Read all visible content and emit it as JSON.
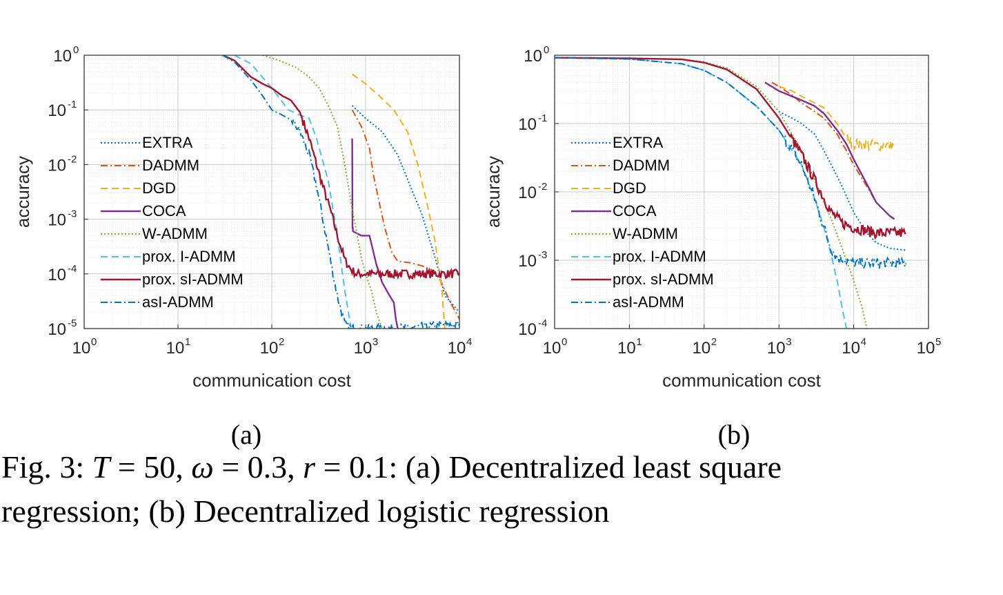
{
  "caption": {
    "line1": [
      "Fig. 3: ",
      "T",
      " = 50, ",
      "ω",
      " = 0.3, ",
      "r",
      " = 0.1: (a) Decentralized least square"
    ],
    "line2": "regression; (b) Decentralized logistic regression"
  },
  "chart_data": [
    {
      "panel": "(a)",
      "type": "line",
      "xlabel": "communication cost",
      "ylabel": "accuracy",
      "xscale": "log",
      "yscale": "log",
      "xlim": [
        1,
        10000
      ],
      "ylim": [
        1e-05,
        1
      ],
      "xticks": [
        {
          "base": "10",
          "exp": "0"
        },
        {
          "base": "10",
          "exp": "1"
        },
        {
          "base": "10",
          "exp": "2"
        },
        {
          "base": "10",
          "exp": "3"
        },
        {
          "base": "10",
          "exp": "4"
        }
      ],
      "yticks": [
        {
          "base": "10",
          "exp": "0"
        },
        {
          "base": "10",
          "exp": "-1"
        },
        {
          "base": "10",
          "exp": "-2"
        },
        {
          "base": "10",
          "exp": "-3"
        },
        {
          "base": "10",
          "exp": "-4"
        },
        {
          "base": "10",
          "exp": "-5"
        }
      ],
      "grid": true,
      "legend_position": "center-left",
      "series": [
        {
          "name": "EXTRA",
          "color": "#0072BD",
          "dash": "dotted",
          "noisy": false,
          "x": [
            720,
            1000,
            1500,
            2200,
            3000,
            4000,
            5500,
            7000,
            10000
          ],
          "y": [
            0.12,
            0.07,
            0.04,
            0.015,
            0.004,
            0.0012,
            0.0002,
            4e-05,
            2e-05
          ]
        },
        {
          "name": "DADMM",
          "color": "#D95319",
          "dash": "dashdot",
          "noisy": false,
          "x": [
            720,
            900,
            1100,
            1200,
            1400,
            1600,
            1900,
            2200,
            3000,
            4000,
            5000,
            6000,
            7000,
            8000,
            10000
          ],
          "y": [
            0.1,
            0.05,
            0.02,
            0.007,
            0.002,
            0.0007,
            0.00025,
            0.00017,
            0.00016,
            0.00014,
            0.00012,
            9e-05,
            5e-05,
            3e-05,
            1.5e-05
          ]
        },
        {
          "name": "DGD",
          "color": "#EDB120",
          "dash": "dashed",
          "noisy": false,
          "x": [
            720,
            1000,
            1400,
            2000,
            2800,
            3600,
            4500,
            5500,
            6500,
            7000
          ],
          "y": [
            0.45,
            0.3,
            0.18,
            0.1,
            0.04,
            0.01,
            0.002,
            0.0004,
            5e-05,
            1e-05
          ]
        },
        {
          "name": "COCA",
          "color": "#7E2F8E",
          "dash": "solid",
          "noisy": false,
          "x": [
            720,
            725,
            730,
            735,
            900,
            1100,
            1300,
            1500,
            1800,
            2000,
            2100,
            2200
          ],
          "y": [
            0.03,
            0.0007,
            0.0007,
            0.0006,
            0.0005,
            0.0005,
            0.00015,
            7e-05,
            4e-05,
            3e-05,
            1.5e-05,
            1e-05
          ]
        },
        {
          "name": "W-ADMM",
          "color": "#77AC30",
          "dash": "dotted",
          "noisy": false,
          "x": [
            80,
            120,
            180,
            250,
            320,
            400,
            500,
            600,
            700,
            800,
            900,
            1000,
            1150,
            1300,
            1500
          ],
          "y": [
            1,
            0.8,
            0.6,
            0.4,
            0.25,
            0.12,
            0.05,
            0.01,
            0.002,
            0.0006,
            0.0002,
            0.0001,
            5e-05,
            2e-05,
            1e-05
          ]
        },
        {
          "name": "prox. I-ADMM",
          "color": "#4DBEEE",
          "dash": "dashed",
          "noisy": false,
          "x": [
            40,
            60,
            100,
            150,
            200,
            250,
            300,
            400,
            500,
            600,
            700
          ],
          "y": [
            1,
            0.7,
            0.25,
            0.1,
            0.08,
            0.07,
            0.03,
            0.005,
            0.0005,
            5e-05,
            1e-05
          ]
        },
        {
          "name": "prox. sI-ADMM",
          "color": "#A2142F",
          "dash": "solid",
          "noisy": true,
          "x": [
            30,
            40,
            60,
            80,
            100,
            130,
            160,
            200,
            250,
            300,
            350,
            420,
            500,
            600,
            700,
            800,
            1000,
            2000,
            5000,
            10000
          ],
          "y": [
            1,
            0.8,
            0.4,
            0.3,
            0.25,
            0.18,
            0.15,
            0.09,
            0.03,
            0.01,
            0.004,
            0.0015,
            0.0005,
            0.00018,
            0.00012,
            0.0001,
            0.0001,
            0.0001,
            0.0001,
            0.0001
          ]
        },
        {
          "name": "asI-ADMM",
          "color": "#0072BD",
          "dash": "dashdot",
          "noisy": true,
          "x": [
            30,
            40,
            60,
            80,
            100,
            130,
            150,
            170,
            200,
            250,
            300,
            350,
            400,
            460,
            520,
            600,
            700,
            1000,
            2000,
            5000,
            10000
          ],
          "y": [
            1,
            0.75,
            0.35,
            0.18,
            0.1,
            0.08,
            0.07,
            0.06,
            0.04,
            0.015,
            0.004,
            0.001,
            0.0003,
            8e-05,
            3e-05,
            1.2e-05,
            1e-05,
            1e-05,
            1e-05,
            1.1e-05,
            1.2e-05
          ]
        }
      ]
    },
    {
      "panel": "(b)",
      "type": "line",
      "xlabel": "communication cost",
      "ylabel": "accuracy",
      "xscale": "log",
      "yscale": "log",
      "xlim": [
        1,
        100000
      ],
      "ylim": [
        0.0001,
        1
      ],
      "xticks": [
        {
          "base": "10",
          "exp": "0"
        },
        {
          "base": "10",
          "exp": "1"
        },
        {
          "base": "10",
          "exp": "2"
        },
        {
          "base": "10",
          "exp": "3"
        },
        {
          "base": "10",
          "exp": "4"
        },
        {
          "base": "10",
          "exp": "5"
        }
      ],
      "yticks": [
        {
          "base": "10",
          "exp": "0"
        },
        {
          "base": "10",
          "exp": "-1"
        },
        {
          "base": "10",
          "exp": "-2"
        },
        {
          "base": "10",
          "exp": "-3"
        },
        {
          "base": "10",
          "exp": "-4"
        }
      ],
      "grid": true,
      "legend_position": "center-left",
      "series": [
        {
          "name": "EXTRA",
          "color": "#0072BD",
          "dash": "dotted",
          "noisy": false,
          "x": [
            1000,
            1500,
            2000,
            3000,
            4000,
            5000,
            7000,
            10000,
            15000,
            20000,
            30000,
            50000
          ],
          "y": [
            0.15,
            0.12,
            0.1,
            0.07,
            0.04,
            0.025,
            0.012,
            0.005,
            0.0025,
            0.0018,
            0.0015,
            0.0014
          ]
        },
        {
          "name": "DADMM",
          "color": "#D95319",
          "dash": "dashdot",
          "noisy": false,
          "x": [
            800,
            1000,
            1500,
            2000,
            3000,
            4000,
            6000,
            8000,
            10000,
            15000,
            20000,
            30000,
            35000
          ],
          "y": [
            0.4,
            0.35,
            0.26,
            0.2,
            0.15,
            0.12,
            0.07,
            0.04,
            0.025,
            0.012,
            0.007,
            0.0045,
            0.004
          ]
        },
        {
          "name": "DGD",
          "color": "#EDB120",
          "dash": "dashed",
          "noisy": true,
          "x": [
            1000,
            1500,
            2000,
            3000,
            4000,
            6000,
            8000,
            10000,
            15000,
            20000,
            30000,
            35000
          ],
          "y": [
            0.35,
            0.3,
            0.25,
            0.2,
            0.17,
            0.1,
            0.06,
            0.05,
            0.048,
            0.048,
            0.048,
            0.048
          ]
        },
        {
          "name": "COCA",
          "color": "#7E2F8E",
          "dash": "solid",
          "noisy": false,
          "x": [
            650,
            1000,
            1500,
            2000,
            3000,
            4000,
            6000,
            8000,
            10000,
            15000,
            20000,
            30000,
            35000
          ],
          "y": [
            0.4,
            0.3,
            0.25,
            0.22,
            0.18,
            0.14,
            0.08,
            0.05,
            0.03,
            0.013,
            0.007,
            0.0045,
            0.004
          ]
        },
        {
          "name": "W-ADMM",
          "color": "#77AC30",
          "dash": "dotted",
          "noisy": false,
          "x": [
            1,
            10,
            50,
            100,
            200,
            500,
            1000,
            2000,
            3000,
            5000,
            7000,
            10000,
            13000,
            15000
          ],
          "y": [
            0.92,
            0.9,
            0.87,
            0.8,
            0.65,
            0.35,
            0.15,
            0.04,
            0.015,
            0.004,
            0.0015,
            0.0005,
            0.0002,
            0.0001
          ]
        },
        {
          "name": "prox. I-ADMM",
          "color": "#4DBEEE",
          "dash": "dashed",
          "noisy": false,
          "x": [
            1,
            10,
            50,
            100,
            200,
            500,
            1000,
            2000,
            3000,
            4000,
            5000,
            6000,
            7000,
            8000
          ],
          "y": [
            0.92,
            0.88,
            0.75,
            0.6,
            0.4,
            0.18,
            0.08,
            0.025,
            0.008,
            0.003,
            0.0012,
            0.0005,
            0.0002,
            0.0001
          ]
        },
        {
          "name": "prox. sI-ADMM",
          "color": "#A2142F",
          "dash": "solid",
          "noisy": true,
          "x": [
            1,
            10,
            50,
            100,
            200,
            500,
            1000,
            2000,
            3000,
            4000,
            5000,
            7000,
            10000,
            15000,
            20000,
            50000
          ],
          "y": [
            0.92,
            0.9,
            0.87,
            0.78,
            0.62,
            0.32,
            0.12,
            0.035,
            0.015,
            0.008,
            0.005,
            0.0035,
            0.003,
            0.0027,
            0.0025,
            0.0025
          ]
        },
        {
          "name": "asI-ADMM",
          "color": "#0072BD",
          "dash": "dashdot",
          "noisy": true,
          "x": [
            1,
            10,
            50,
            100,
            200,
            500,
            1000,
            2000,
            3000,
            4000,
            5000,
            6000,
            8000,
            10000,
            20000,
            50000
          ],
          "y": [
            0.92,
            0.88,
            0.75,
            0.6,
            0.4,
            0.18,
            0.08,
            0.025,
            0.008,
            0.003,
            0.0015,
            0.0011,
            0.001,
            0.0009,
            0.0009,
            0.0009
          ]
        }
      ]
    }
  ]
}
